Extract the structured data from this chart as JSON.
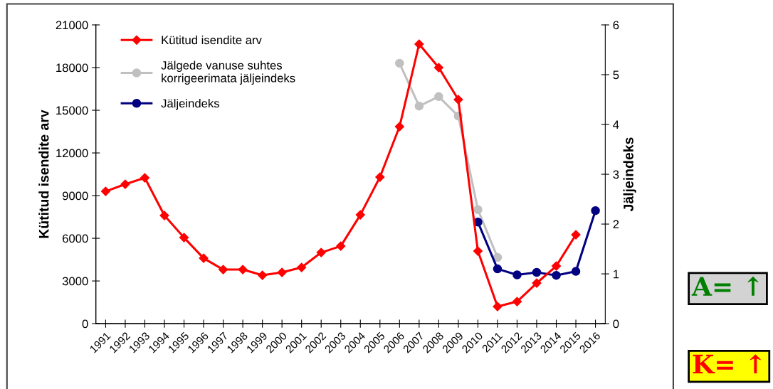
{
  "chart_data": {
    "type": "line",
    "ylabel": "Kütitud isendite arv",
    "y2label": "Jäljeindeks",
    "categories": [
      "1991",
      "1992",
      "1993",
      "1994",
      "1995",
      "1996",
      "1997",
      "1998",
      "1999",
      "2000",
      "2001",
      "2002",
      "2003",
      "2004",
      "2005",
      "2006",
      "2007",
      "2008",
      "2009",
      "2010",
      "2011",
      "2012",
      "2013",
      "2014",
      "2015",
      "2016"
    ],
    "series": [
      {
        "name": "Kütitud isendite arv",
        "color": "#ff0000",
        "marker": "diamond",
        "values": [
          9300,
          9800,
          10250,
          7600,
          6050,
          4600,
          3800,
          3800,
          3400,
          3600,
          3950,
          5000,
          5450,
          7650,
          10300,
          13850,
          19650,
          18000,
          15750,
          5100,
          1200,
          1550,
          2850,
          4050,
          6250,
          null
        ]
      },
      {
        "name": "Jälgede vanuse suhtes korrigeerimata jäljeindeks",
        "color": "#c0c0c0",
        "marker": "circle",
        "axis": "y2",
        "values": [
          null,
          null,
          null,
          null,
          null,
          null,
          null,
          null,
          null,
          null,
          null,
          null,
          null,
          null,
          null,
          5.23,
          4.37,
          4.56,
          4.17,
          2.29,
          1.33,
          null,
          null,
          null,
          null,
          null
        ]
      },
      {
        "name": "Jäljeindeks",
        "color": "#000080",
        "marker": "circle",
        "axis": "y2",
        "values": [
          null,
          null,
          null,
          null,
          null,
          null,
          null,
          null,
          null,
          null,
          null,
          null,
          null,
          null,
          null,
          null,
          null,
          null,
          null,
          2.04,
          1.1,
          0.98,
          1.03,
          0.97,
          1.05,
          2.27
        ]
      }
    ],
    "ylim": [
      0,
      21000
    ],
    "yticks": [
      0,
      3000,
      6000,
      9000,
      12000,
      15000,
      18000,
      21000
    ],
    "y2lim": [
      0,
      6
    ],
    "y2ticks": [
      0,
      1,
      2,
      3,
      4,
      5,
      6
    ],
    "grid": false,
    "legend": "top left",
    "annotations": [
      "A= ↑",
      "K= ↑"
    ]
  }
}
